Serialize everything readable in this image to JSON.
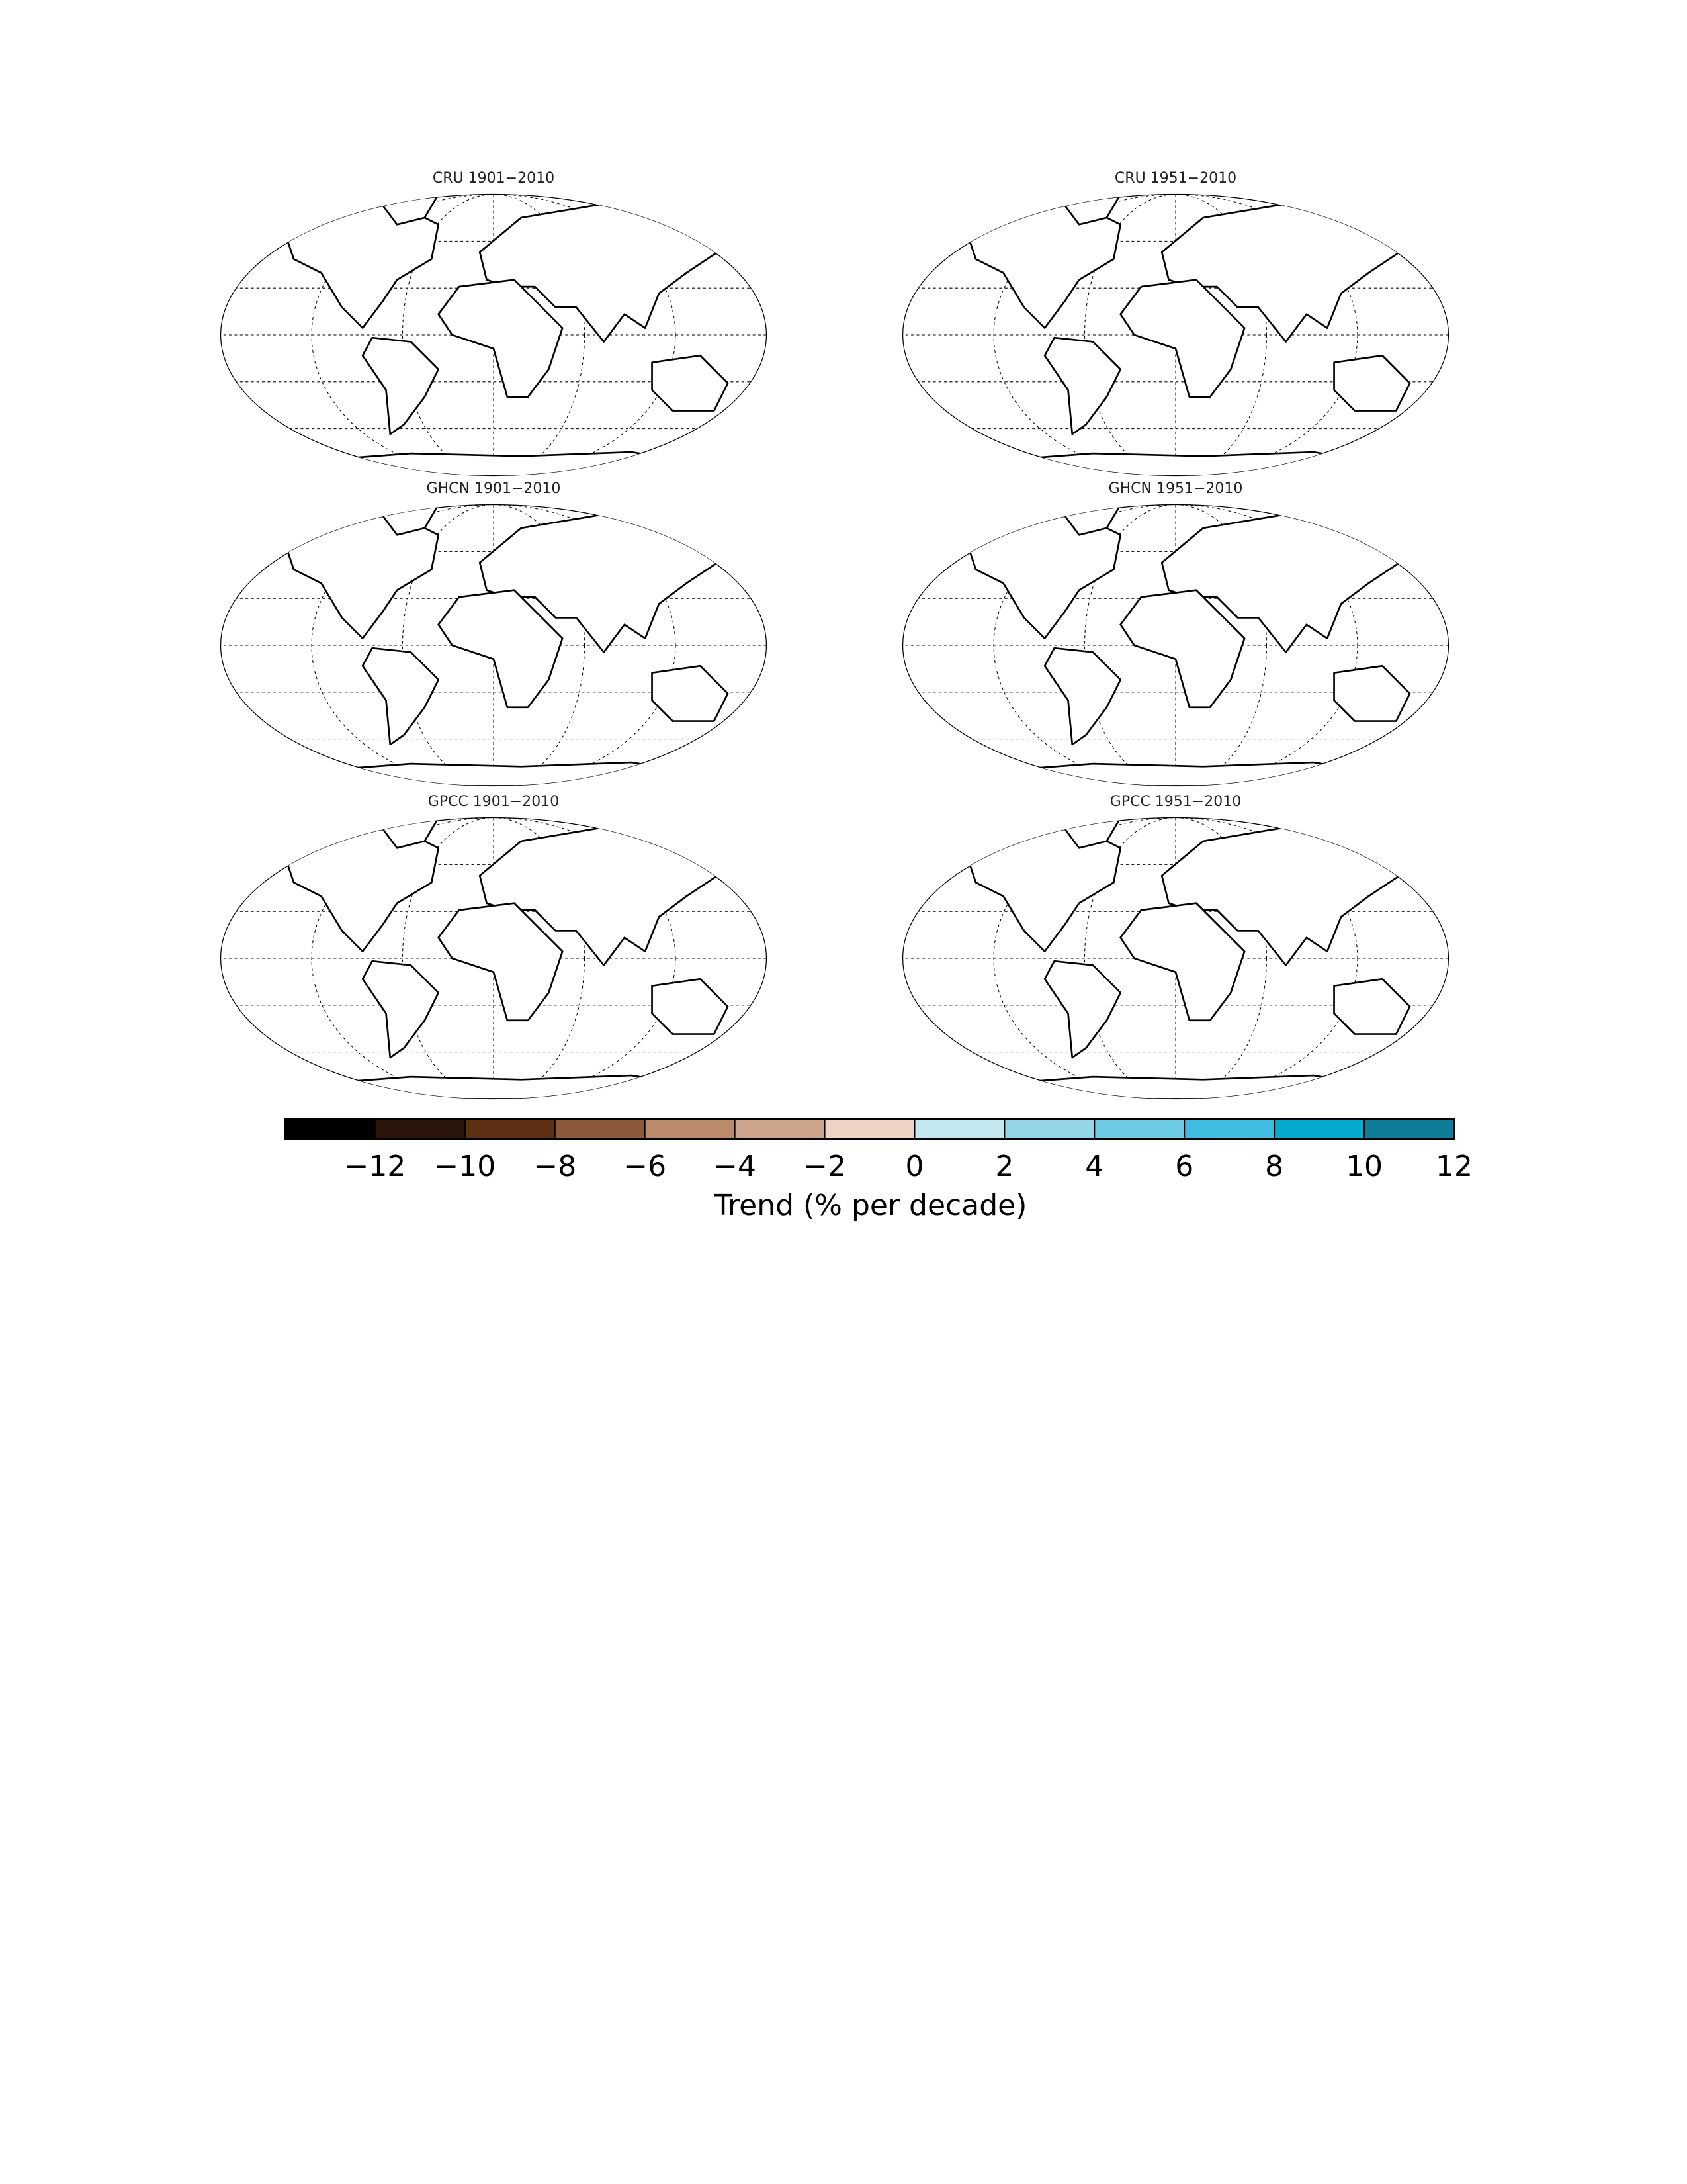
{
  "panels": [
    {
      "title": "CRU  1901−2010"
    },
    {
      "title": "CRU  1951−2010"
    },
    {
      "title": "GHCN  1901−2010"
    },
    {
      "title": "GHCN  1951−2010"
    },
    {
      "title": "GPCC  1901−2010"
    },
    {
      "title": "GPCC  1951−2010"
    }
  ],
  "colorbar": {
    "label": "Trend (% per decade)",
    "lim": [
      -14,
      12
    ],
    "ticks": [
      {
        "value": -12,
        "label": "−12"
      },
      {
        "value": -10,
        "label": "−10"
      },
      {
        "value": -8,
        "label": "−8"
      },
      {
        "value": -6,
        "label": "−6"
      },
      {
        "value": -4,
        "label": "−4"
      },
      {
        "value": -2,
        "label": "−2"
      },
      0,
      2,
      4,
      6,
      8,
      10,
      12
    ],
    "colors": [
      "#000000",
      "#2b1409",
      "#5e2f12",
      "#8c5a3a",
      "#bb8a6a",
      "#cfa48c",
      "#f0d3c5",
      "#c3e8f0",
      "#94d6e8",
      "#6dcbe3",
      "#3fbce0",
      "#06a9cf",
      "#0e7d98"
    ]
  }
}
